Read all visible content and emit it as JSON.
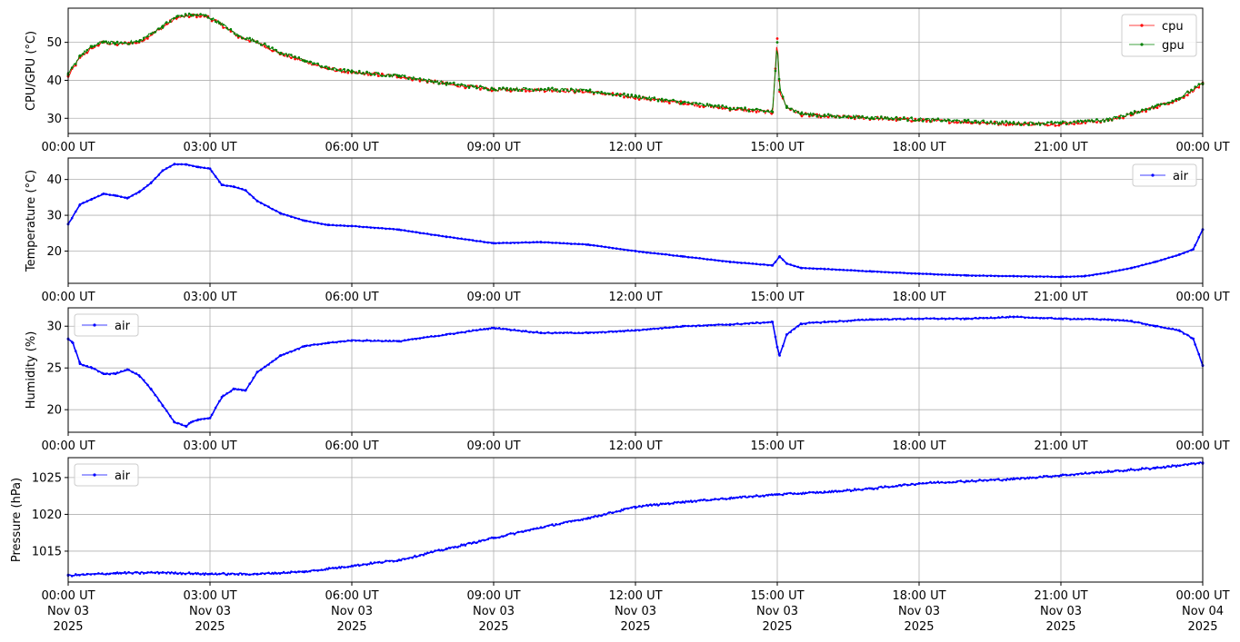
{
  "chart_data": [
    {
      "type": "line",
      "ylabel": "CPU/GPU (°C)",
      "xlim": [
        0,
        24
      ],
      "ylim": [
        26,
        59
      ],
      "yticks": [
        30,
        40,
        50
      ],
      "grid": true,
      "legend_position": "top-right",
      "series": [
        {
          "name": "cpu",
          "color": "#ff0000",
          "x": [
            0,
            0.25,
            0.5,
            0.75,
            1,
            1.5,
            2,
            2.3,
            2.6,
            2.9,
            3.2,
            3.6,
            4,
            4.5,
            5,
            5.5,
            6,
            7,
            8,
            9,
            10,
            11,
            12,
            13,
            14,
            14.9,
            15.0,
            15.05,
            15.2,
            15.5,
            16,
            17,
            18,
            19,
            20,
            21,
            22,
            22.5,
            23,
            23.5,
            24
          ],
          "values": [
            41,
            46,
            48.5,
            50,
            49.5,
            50,
            54,
            56.5,
            57,
            57,
            55,
            51.5,
            50,
            47,
            45,
            43,
            42,
            41,
            39,
            37.5,
            37.5,
            37,
            35.5,
            34,
            32.5,
            31.5,
            51,
            37,
            33,
            31,
            30.5,
            30,
            29.5,
            29,
            28.5,
            28.5,
            29.5,
            31,
            33,
            35,
            39
          ]
        },
        {
          "name": "gpu",
          "color": "#008000",
          "x": [
            0,
            0.25,
            0.5,
            0.75,
            1,
            1.5,
            2,
            2.3,
            2.6,
            2.9,
            3.2,
            3.6,
            4,
            4.5,
            5,
            5.5,
            6,
            7,
            8,
            9,
            10,
            11,
            12,
            13,
            14,
            14.9,
            15.0,
            15.05,
            15.2,
            15.5,
            16,
            17,
            18,
            19,
            20,
            21,
            22,
            22.5,
            23,
            23.5,
            24
          ],
          "values": [
            41.5,
            46.5,
            48.8,
            50.2,
            49.7,
            50.2,
            54.3,
            56.8,
            57.2,
            57.1,
            55.2,
            51.7,
            50.2,
            47.2,
            45.2,
            43.2,
            42.2,
            41.2,
            39.2,
            37.7,
            37.7,
            37.2,
            35.7,
            34.2,
            32.7,
            31.7,
            50,
            37.5,
            33.2,
            31.2,
            30.7,
            30.2,
            29.7,
            29.2,
            28.7,
            28.7,
            29.7,
            31.2,
            33.2,
            35.2,
            39.2
          ]
        }
      ]
    },
    {
      "type": "line",
      "ylabel": "Temperature (°C)",
      "xlim": [
        0,
        24
      ],
      "ylim": [
        11,
        46
      ],
      "yticks": [
        20,
        30,
        40
      ],
      "grid": true,
      "legend_position": "top-right",
      "series": [
        {
          "name": "air",
          "color": "#0000ff",
          "x": [
            0,
            0.25,
            0.5,
            0.75,
            1,
            1.25,
            1.5,
            1.75,
            2,
            2.25,
            2.5,
            2.75,
            3,
            3.25,
            3.5,
            3.75,
            4,
            4.5,
            5,
            5.5,
            6,
            7,
            8,
            9,
            10,
            11,
            12,
            13,
            14,
            14.9,
            15.05,
            15.2,
            15.5,
            16,
            17,
            18,
            19,
            20,
            21,
            21.5,
            22,
            22.5,
            23,
            23.5,
            23.8,
            24
          ],
          "values": [
            27.5,
            33,
            34.5,
            36,
            35.5,
            34.8,
            36.5,
            39,
            42.5,
            44.3,
            44.2,
            43.5,
            43,
            38.5,
            38,
            37,
            34,
            30.5,
            28.5,
            27.3,
            27,
            26,
            24,
            22.2,
            22.5,
            21.8,
            20,
            18.5,
            17,
            16,
            18.5,
            16.5,
            15.3,
            15,
            14.3,
            13.7,
            13.2,
            13,
            12.8,
            13,
            14,
            15.3,
            17,
            19,
            20.5,
            26
          ]
        }
      ]
    },
    {
      "type": "line",
      "ylabel": "Humidity (%)",
      "xlim": [
        0,
        24
      ],
      "ylim": [
        17.3,
        32.2
      ],
      "yticks": [
        20,
        25,
        30
      ],
      "grid": true,
      "legend_position": "top-left",
      "series": [
        {
          "name": "air",
          "color": "#0000ff",
          "x": [
            0,
            0.1,
            0.25,
            0.5,
            0.75,
            1,
            1.25,
            1.5,
            1.75,
            2,
            2.25,
            2.5,
            2.6,
            2.75,
            3,
            3.25,
            3.5,
            3.75,
            4,
            4.5,
            5,
            5.5,
            6,
            7,
            8,
            9,
            10,
            11,
            12,
            13,
            14,
            14.9,
            15.0,
            15.05,
            15.2,
            15.5,
            16,
            17,
            18,
            19,
            20,
            21,
            22,
            22.5,
            23,
            23.5,
            23.8,
            24
          ],
          "values": [
            28.5,
            28,
            25.5,
            25,
            24.3,
            24.3,
            24.8,
            24.1,
            22.5,
            20.5,
            18.5,
            18,
            18.5,
            18.8,
            19,
            21.5,
            22.5,
            22.3,
            24.5,
            26.5,
            27.6,
            28,
            28.3,
            28.2,
            29,
            29.8,
            29.2,
            29.2,
            29.5,
            30,
            30.2,
            30.5,
            27.5,
            26.5,
            29,
            30.3,
            30.5,
            30.8,
            30.9,
            30.9,
            31.1,
            30.9,
            30.8,
            30.6,
            30,
            29.5,
            28.5,
            25.3
          ]
        }
      ]
    },
    {
      "type": "line",
      "ylabel": "Pressure (hPa)",
      "xlim": [
        0,
        24
      ],
      "ylim": [
        1010.8,
        1027.7
      ],
      "yticks": [
        1015,
        1020,
        1025
      ],
      "grid": true,
      "legend_position": "top-left",
      "series": [
        {
          "name": "air",
          "color": "#0000ff",
          "x": [
            0,
            1,
            2,
            3,
            4,
            5,
            6,
            7,
            8,
            9,
            10,
            11,
            12,
            13,
            14,
            15,
            16,
            17,
            18,
            19,
            20,
            21,
            22,
            23,
            24
          ],
          "values": [
            1011.7,
            1012,
            1012.1,
            1011.9,
            1011.9,
            1012.2,
            1013,
            1013.8,
            1015.3,
            1016.8,
            1018.2,
            1019.5,
            1021,
            1021.7,
            1022.2,
            1022.7,
            1023,
            1023.5,
            1024.2,
            1024.5,
            1024.8,
            1025.3,
            1025.8,
            1026.3,
            1027
          ]
        }
      ]
    }
  ],
  "x_tick_labels": [
    "00:00 UT",
    "03:00 UT",
    "06:00 UT",
    "09:00 UT",
    "12:00 UT",
    "15:00 UT",
    "18:00 UT",
    "21:00 UT",
    "00:00 UT"
  ],
  "x_tick_date_labels": [
    [
      "Nov 03",
      "2025"
    ],
    [
      "Nov 03",
      "2025"
    ],
    [
      "Nov 03",
      "2025"
    ],
    [
      "Nov 03",
      "2025"
    ],
    [
      "Nov 03",
      "2025"
    ],
    [
      "Nov 03",
      "2025"
    ],
    [
      "Nov 03",
      "2025"
    ],
    [
      "Nov 03",
      "2025"
    ],
    [
      "Nov 04",
      "2025"
    ]
  ],
  "grid_color": "#b0b0b0"
}
